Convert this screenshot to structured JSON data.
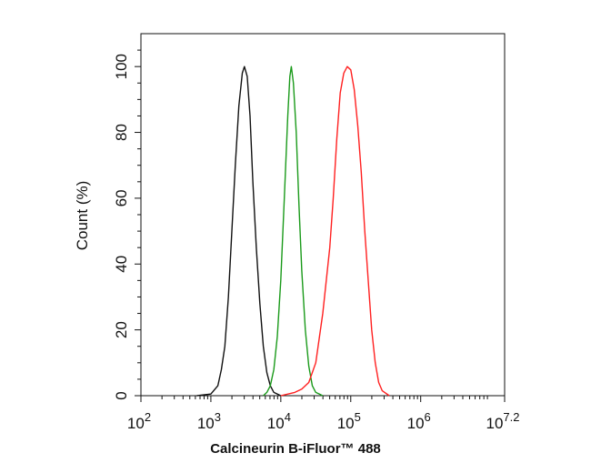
{
  "chart_data": {
    "type": "line",
    "title": "",
    "xlabel": "Calcineurin B-iFluor™ 488",
    "ylabel": "Count (%)",
    "xscale": "log",
    "xlim_log10": [
      2,
      7.2
    ],
    "ylim": [
      0,
      110
    ],
    "x_ticks": [
      {
        "base": "10",
        "exp": "2"
      },
      {
        "base": "10",
        "exp": "3"
      },
      {
        "base": "10",
        "exp": "4"
      },
      {
        "base": "10",
        "exp": "5"
      },
      {
        "base": "10",
        "exp": "6"
      },
      {
        "base": "10",
        "exp": "7.2"
      }
    ],
    "y_ticks": [
      "0",
      "20",
      "40",
      "60",
      "80",
      "100"
    ],
    "grid": false,
    "series": [
      {
        "color": "#111111",
        "points": [
          [
            2.8,
            0
          ],
          [
            3.0,
            0.5
          ],
          [
            3.1,
            3
          ],
          [
            3.15,
            8
          ],
          [
            3.2,
            15
          ],
          [
            3.25,
            30
          ],
          [
            3.3,
            50
          ],
          [
            3.35,
            70
          ],
          [
            3.4,
            88
          ],
          [
            3.45,
            98
          ],
          [
            3.48,
            100
          ],
          [
            3.52,
            97
          ],
          [
            3.56,
            85
          ],
          [
            3.6,
            65
          ],
          [
            3.65,
            45
          ],
          [
            3.7,
            28
          ],
          [
            3.75,
            15
          ],
          [
            3.8,
            7
          ],
          [
            3.85,
            3
          ],
          [
            3.9,
            1
          ],
          [
            4.0,
            0
          ]
        ]
      },
      {
        "color": "#1a9a1a",
        "points": [
          [
            3.75,
            0
          ],
          [
            3.8,
            1
          ],
          [
            3.85,
            3
          ],
          [
            3.9,
            8
          ],
          [
            3.95,
            18
          ],
          [
            4.0,
            35
          ],
          [
            4.05,
            60
          ],
          [
            4.1,
            85
          ],
          [
            4.13,
            97
          ],
          [
            4.15,
            100
          ],
          [
            4.18,
            95
          ],
          [
            4.22,
            80
          ],
          [
            4.26,
            58
          ],
          [
            4.3,
            38
          ],
          [
            4.35,
            20
          ],
          [
            4.4,
            9
          ],
          [
            4.45,
            3
          ],
          [
            4.5,
            1
          ],
          [
            4.6,
            0
          ]
        ]
      },
      {
        "color": "#ff2020",
        "points": [
          [
            4.0,
            0
          ],
          [
            4.2,
            1
          ],
          [
            4.3,
            2
          ],
          [
            4.4,
            4
          ],
          [
            4.5,
            10
          ],
          [
            4.6,
            25
          ],
          [
            4.7,
            45
          ],
          [
            4.75,
            60
          ],
          [
            4.8,
            78
          ],
          [
            4.85,
            92
          ],
          [
            4.9,
            98
          ],
          [
            4.95,
            100
          ],
          [
            5.0,
            99
          ],
          [
            5.05,
            93
          ],
          [
            5.1,
            82
          ],
          [
            5.15,
            68
          ],
          [
            5.2,
            50
          ],
          [
            5.25,
            35
          ],
          [
            5.3,
            20
          ],
          [
            5.35,
            10
          ],
          [
            5.4,
            4
          ],
          [
            5.45,
            1.5
          ],
          [
            5.55,
            0
          ]
        ]
      }
    ]
  }
}
